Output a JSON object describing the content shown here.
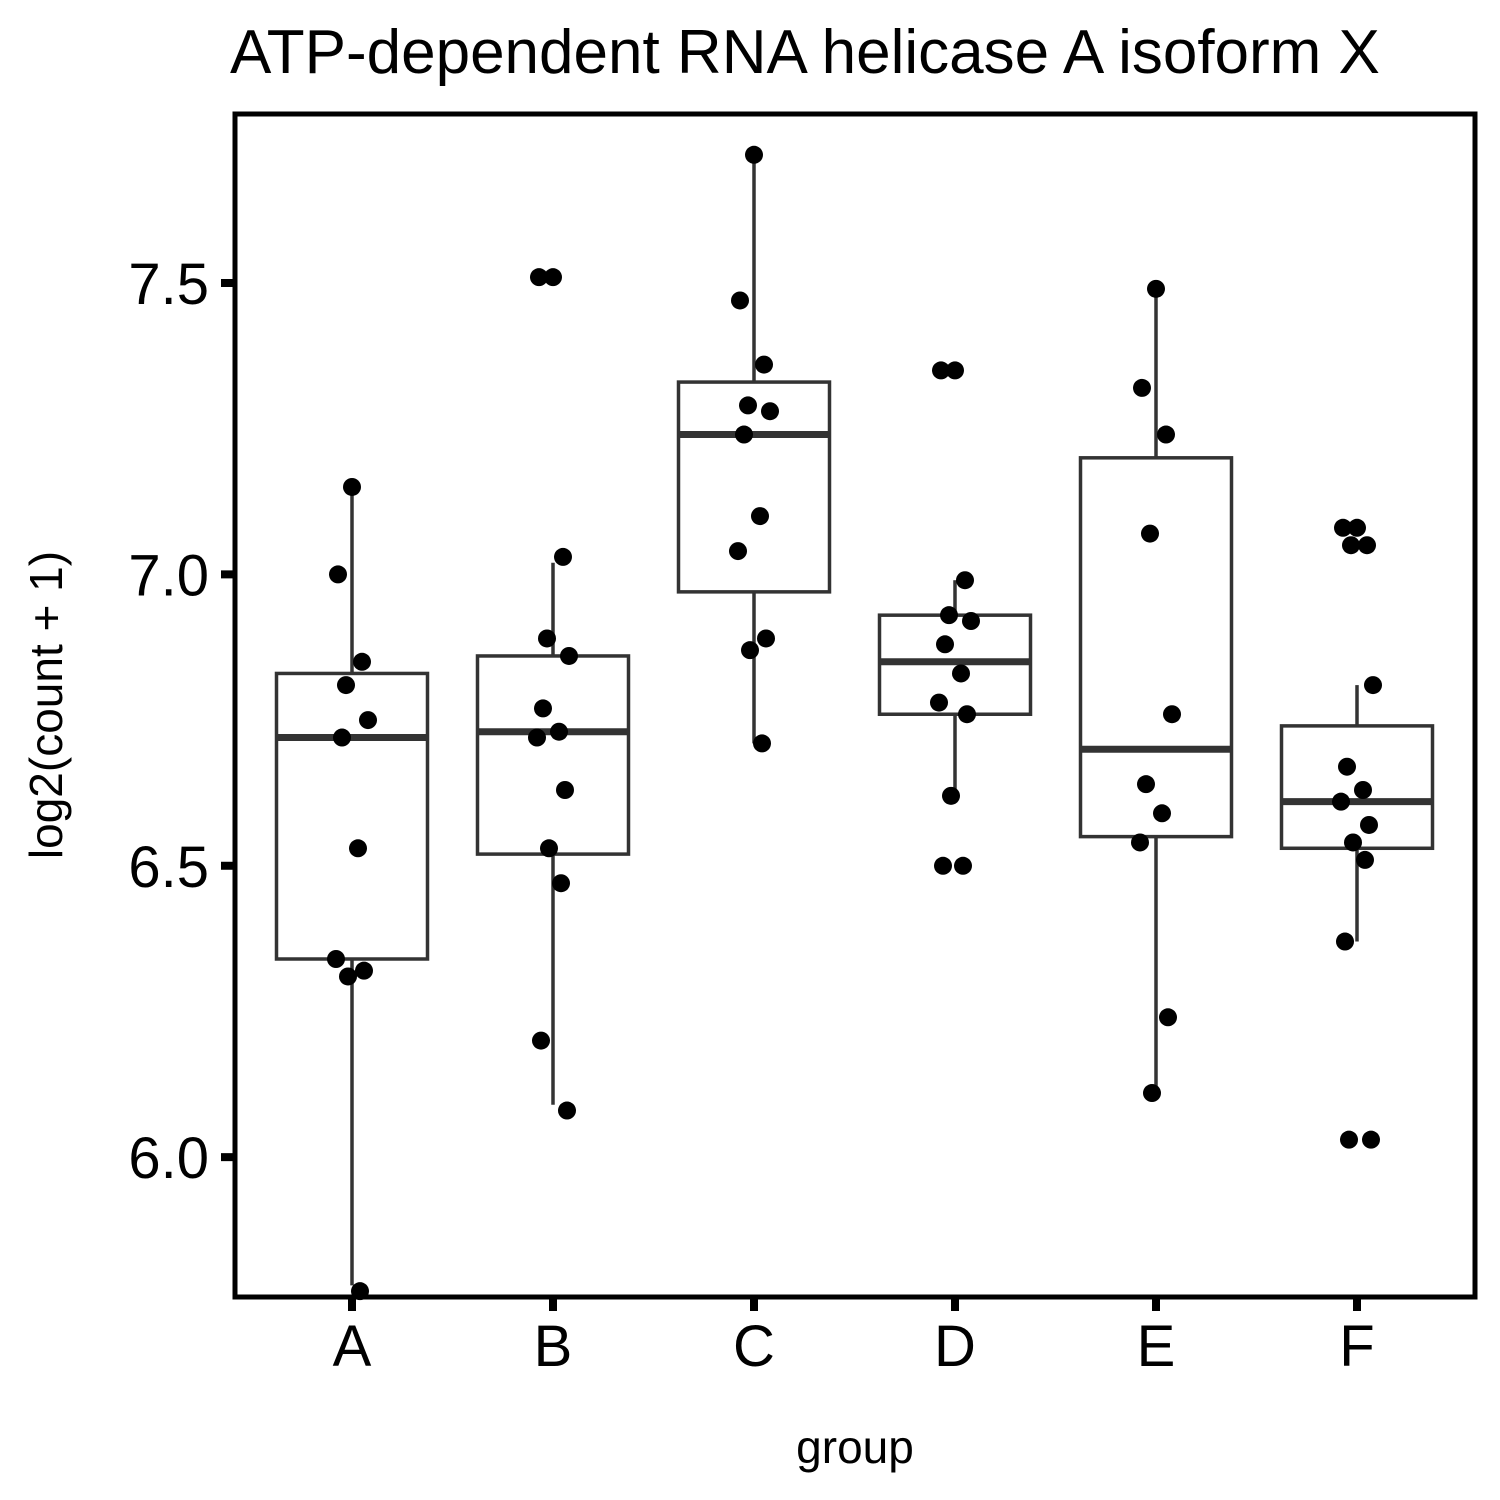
{
  "chart_data": {
    "type": "boxplot",
    "title": "ATP-dependent RNA helicase A isoform X",
    "xlabel": "group",
    "ylabel": "log2(count + 1)",
    "ylim": [
      5.76,
      7.79
    ],
    "yticks": [
      "6.0",
      "6.5",
      "7.0",
      "7.5"
    ],
    "categories": [
      "A",
      "B",
      "C",
      "D",
      "E",
      "F"
    ],
    "boxes": [
      {
        "group": "A",
        "whisker_low": 5.78,
        "q1": 6.34,
        "median": 6.72,
        "q3": 6.83,
        "whisker_high": 7.14
      },
      {
        "group": "B",
        "whisker_low": 6.09,
        "q1": 6.52,
        "median": 6.73,
        "q3": 6.86,
        "whisker_high": 7.02
      },
      {
        "group": "C",
        "whisker_low": 6.71,
        "q1": 6.97,
        "median": 7.24,
        "q3": 7.33,
        "whisker_high": 7.72
      },
      {
        "group": "D",
        "whisker_low": 6.62,
        "q1": 6.76,
        "median": 6.85,
        "q3": 6.93,
        "whisker_high": 6.99
      },
      {
        "group": "E",
        "whisker_low": 6.12,
        "q1": 6.55,
        "median": 6.7,
        "q3": 7.2,
        "whisker_high": 7.49
      },
      {
        "group": "F",
        "whisker_low": 6.37,
        "q1": 6.53,
        "median": 6.61,
        "q3": 6.74,
        "whisker_high": 6.81
      }
    ],
    "points": [
      {
        "group": "A",
        "values": [
          7.15,
          7.0,
          6.85,
          6.81,
          6.75,
          6.72,
          6.53,
          6.34,
          6.32,
          6.31,
          5.77
        ]
      },
      {
        "group": "B",
        "values": [
          7.51,
          7.51,
          7.03,
          6.89,
          6.86,
          6.77,
          6.73,
          6.72,
          6.63,
          6.53,
          6.47,
          6.2,
          6.08
        ]
      },
      {
        "group": "C",
        "values": [
          7.72,
          7.47,
          7.36,
          7.29,
          7.28,
          7.24,
          7.1,
          7.04,
          6.89,
          6.87,
          6.71
        ]
      },
      {
        "group": "D",
        "values": [
          7.35,
          7.35,
          6.99,
          6.93,
          6.92,
          6.88,
          6.83,
          6.78,
          6.76,
          6.62,
          6.5,
          6.5
        ]
      },
      {
        "group": "E",
        "values": [
          7.49,
          7.32,
          7.24,
          7.07,
          6.76,
          6.64,
          6.59,
          6.54,
          6.24,
          6.11
        ]
      },
      {
        "group": "F",
        "values": [
          7.08,
          7.08,
          7.05,
          7.05,
          6.81,
          6.67,
          6.63,
          6.61,
          6.57,
          6.54,
          6.51,
          6.37,
          6.03,
          6.03
        ]
      }
    ],
    "colors": {
      "box_stroke": "#333333",
      "point": "#000000",
      "panel_border": "#000000",
      "background": "#ffffff"
    },
    "grid": false,
    "legend": "none"
  }
}
